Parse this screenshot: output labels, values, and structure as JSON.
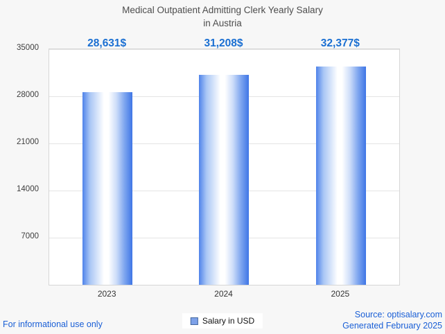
{
  "title": {
    "line1": "Medical Outpatient Admitting Clerk Yearly Salary",
    "line2": "in Austria"
  },
  "chart_data": {
    "type": "bar",
    "title": "Medical Outpatient Admitting Clerk Yearly Salary in Austria",
    "categories": [
      "2023",
      "2024",
      "2025"
    ],
    "values": [
      28631,
      31208,
      32377
    ],
    "value_labels": [
      "28,631$",
      "31,208$",
      "32,377$"
    ],
    "series": [
      {
        "name": "Salary in USD",
        "values": [
          28631,
          31208,
          32377
        ]
      }
    ],
    "legend": [
      "Salary in USD"
    ],
    "legend_position": "bottom",
    "xlabel": "",
    "ylabel": "",
    "ylim": [
      0,
      35000
    ],
    "yticks": [
      7000,
      14000,
      21000,
      28000,
      35000
    ],
    "grid": true,
    "colors": {
      "bar_edge": "#3f76e6",
      "bar_center": "#ffffff",
      "value_label": "#1a6fd2",
      "gridline": "#e4e4e4",
      "plot_background": "#ffffff",
      "page_background": "#f7f7f7",
      "footer_text": "#1a5fd6"
    }
  },
  "footer": {
    "disclaimer": "For informational use only",
    "source": "Source: optisalary.com",
    "generated": "Generated February 2025"
  }
}
